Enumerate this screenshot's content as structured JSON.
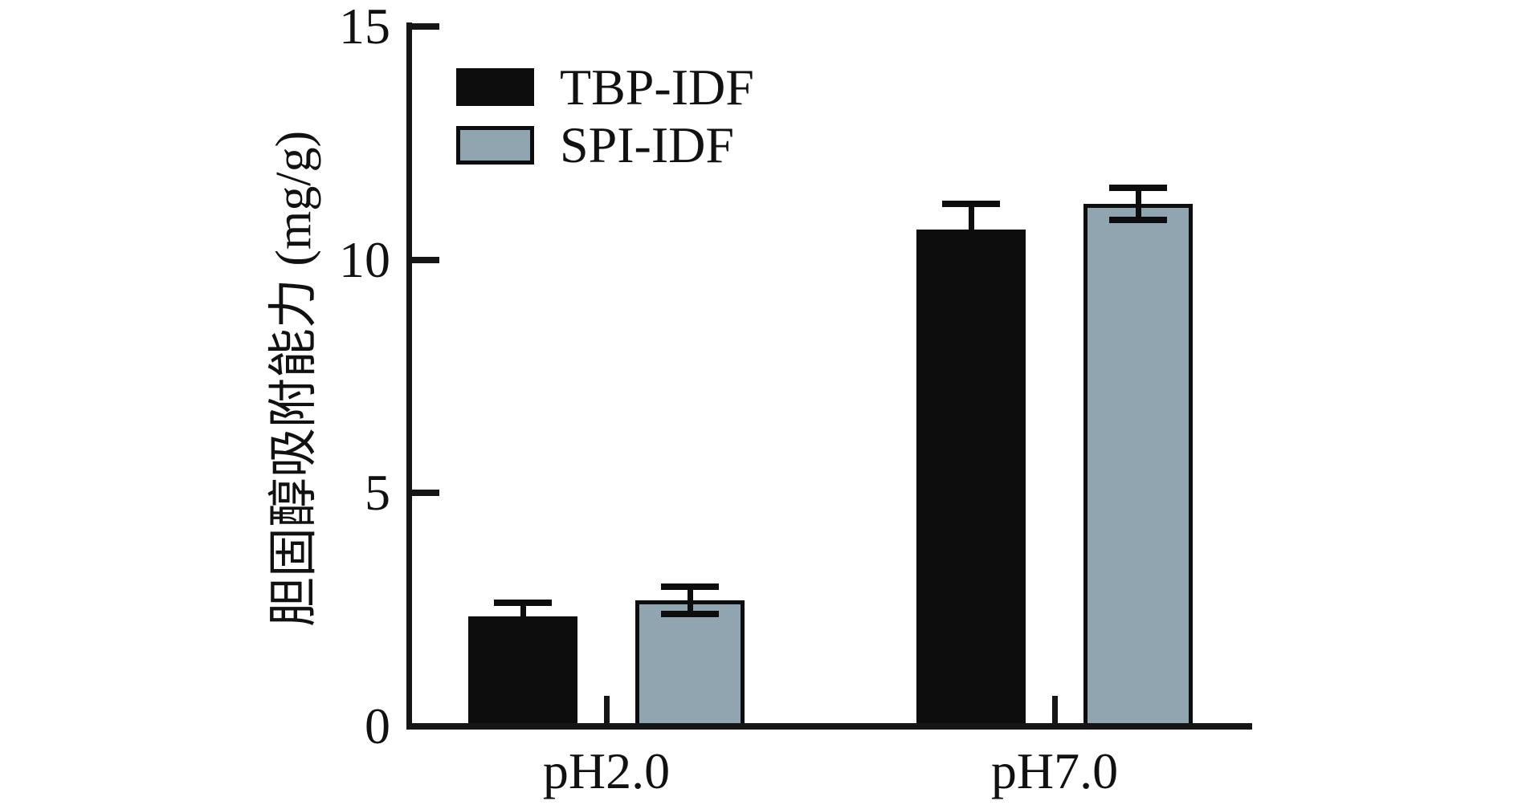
{
  "chart_data": {
    "type": "bar",
    "title": "",
    "categories": [
      "pH2.0",
      "pH7.0"
    ],
    "series": [
      {
        "name": "TBP-IDF",
        "color": "#0d0d0d",
        "outlined": false,
        "values": [
          2.35,
          10.65
        ],
        "errors": [
          0.3,
          0.55
        ]
      },
      {
        "name": "SPI-IDF",
        "color": "#90a5b0",
        "outlined": true,
        "values": [
          2.7,
          11.2
        ],
        "errors": [
          0.3,
          0.35
        ]
      }
    ],
    "xlabel": "",
    "ylabel": "胆固醇吸附能力 (mg/g)",
    "ylim": [
      0,
      15
    ],
    "yticks": [
      0,
      5,
      10,
      15
    ],
    "grid": false,
    "legend": {
      "position": "top-left-inside",
      "entries": [
        "TBP-IDF",
        "SPI-IDF"
      ]
    },
    "axis_color": "#161616",
    "background": "#ffffff"
  }
}
